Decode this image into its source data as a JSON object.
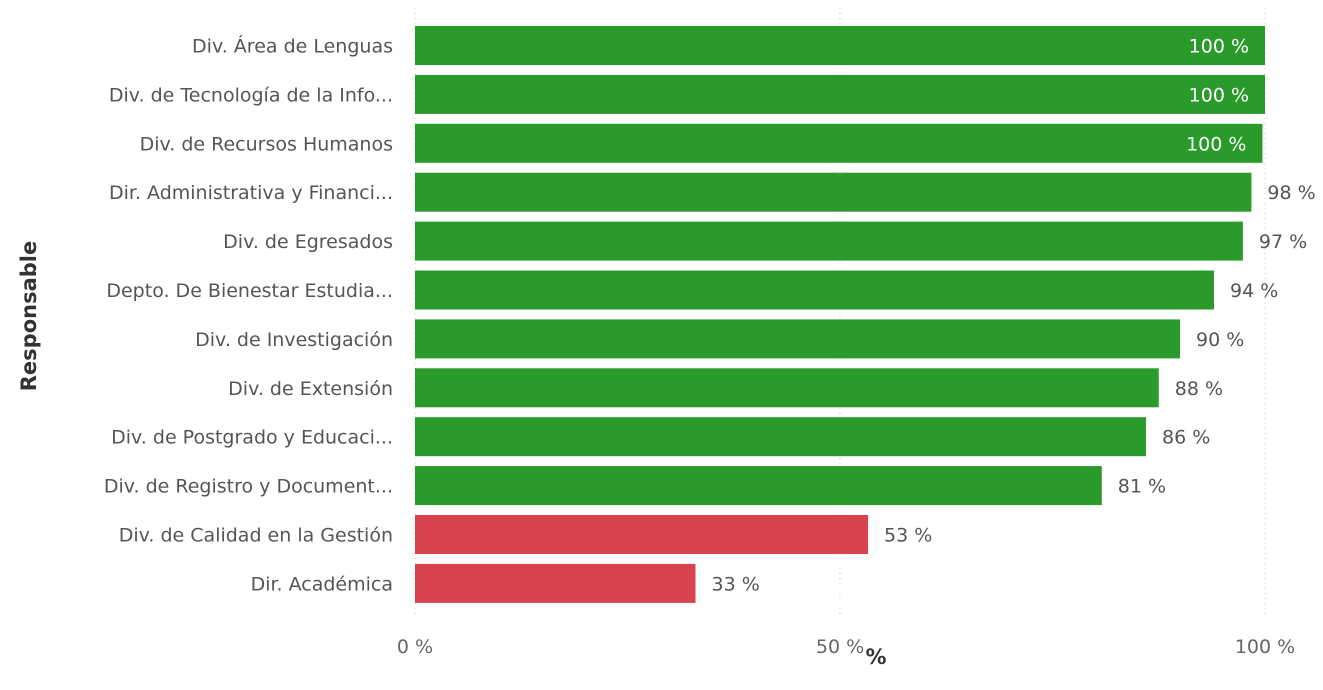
{
  "chart_data": {
    "type": "bar",
    "orientation": "horizontal",
    "xlabel": "%",
    "ylabel": "Responsable",
    "xlim": [
      0,
      100
    ],
    "x_ticks": [
      {
        "value": 0,
        "label": "0 %"
      },
      {
        "value": 50,
        "label": "50 %"
      },
      {
        "value": 100,
        "label": "100 %"
      }
    ],
    "grid": true,
    "colors": {
      "above_threshold": "#2a9b2a",
      "below_threshold": "#d9434e"
    },
    "categories": [
      "Div. Área de Lenguas",
      "Div. de Tecnología de la Info...",
      "Div. de Recursos Humanos",
      "Dir. Administrativa y Financi...",
      "Div. de Egresados",
      "Depto. De Bienestar Estudia...",
      "Div. de Investigación",
      "Div. de Extensión",
      "Div. de Postgrado y Educaci...",
      "Div. de Registro y Document...",
      "Div. de Calidad en la Gestión",
      "Dir. Académica"
    ],
    "values": [
      100,
      100,
      99.7,
      98.4,
      97.4,
      94,
      90,
      87.5,
      86,
      80.8,
      53.3,
      33
    ],
    "value_labels": [
      "100 %",
      "100 %",
      "100 %",
      "98 %",
      "97 %",
      "94 %",
      "90 %",
      "88 %",
      "86 %",
      "81 %",
      "53 %",
      "33 %"
    ],
    "bar_status": [
      "above_threshold",
      "above_threshold",
      "above_threshold",
      "above_threshold",
      "above_threshold",
      "above_threshold",
      "above_threshold",
      "above_threshold",
      "above_threshold",
      "above_threshold",
      "below_threshold",
      "below_threshold"
    ]
  }
}
